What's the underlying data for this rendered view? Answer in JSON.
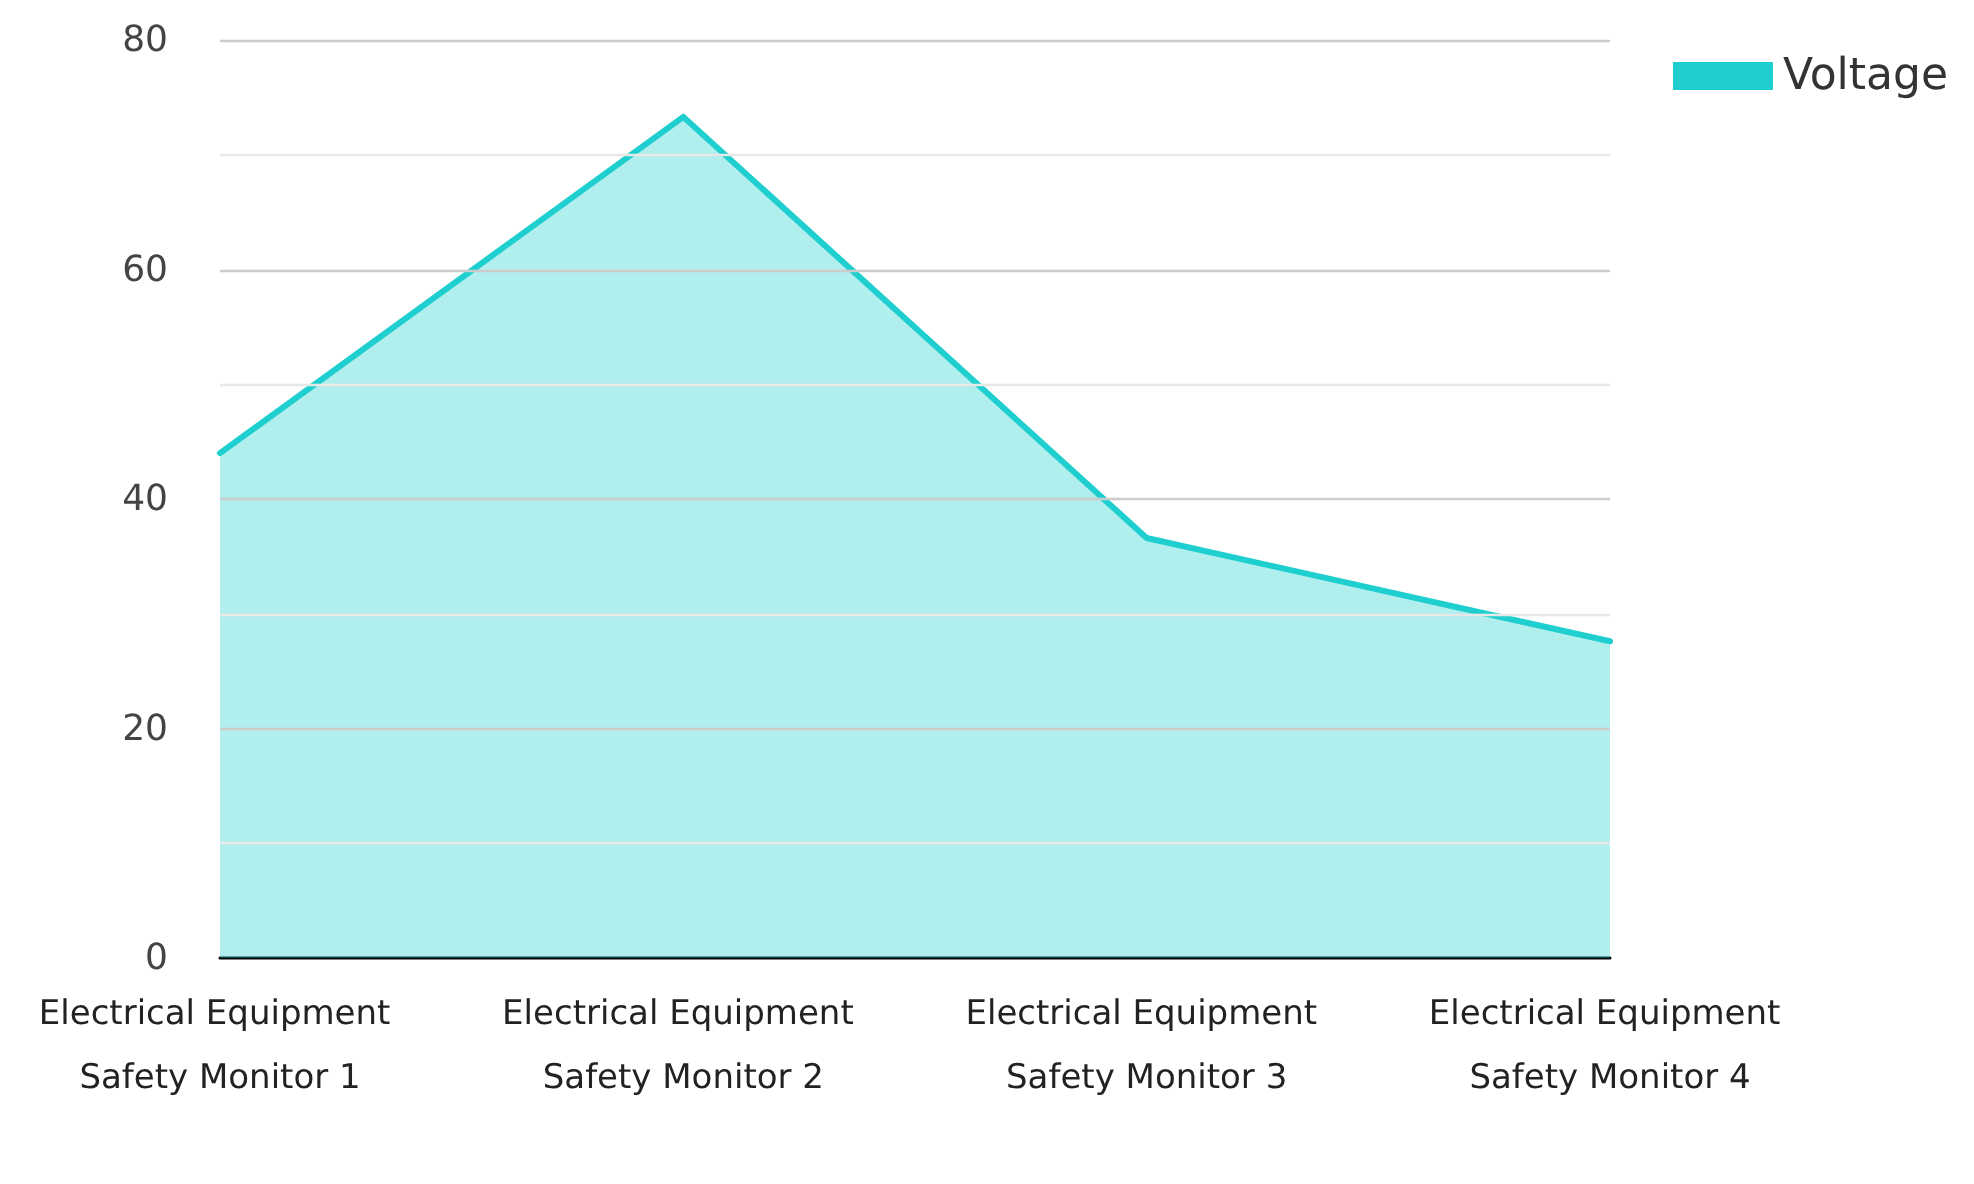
{
  "chart_data": {
    "type": "area",
    "categories": [
      "Electrical Equipment Safety Monitor 1",
      "Electrical Equipment Safety Monitor 2",
      "Electrical Equipment Safety Monitor 3",
      "Electrical Equipment Safety Monitor 4"
    ],
    "series": [
      {
        "name": "Voltage",
        "color": "#1fcfcf",
        "values": [
          44.0,
          73.3,
          36.6,
          27.6
        ]
      }
    ],
    "ylim": [
      0,
      80
    ],
    "yticks": [
      0,
      {
        "value": 10,
        "label": null
      },
      20,
      {
        "value": 30,
        "label": null
      },
      40,
      {
        "value": 50,
        "label": null
      },
      60,
      {
        "value": 70,
        "label": null
      },
      80
    ],
    "grid": "y",
    "legend": "top right",
    "marker": "none",
    "line_style": "solid"
  }
}
